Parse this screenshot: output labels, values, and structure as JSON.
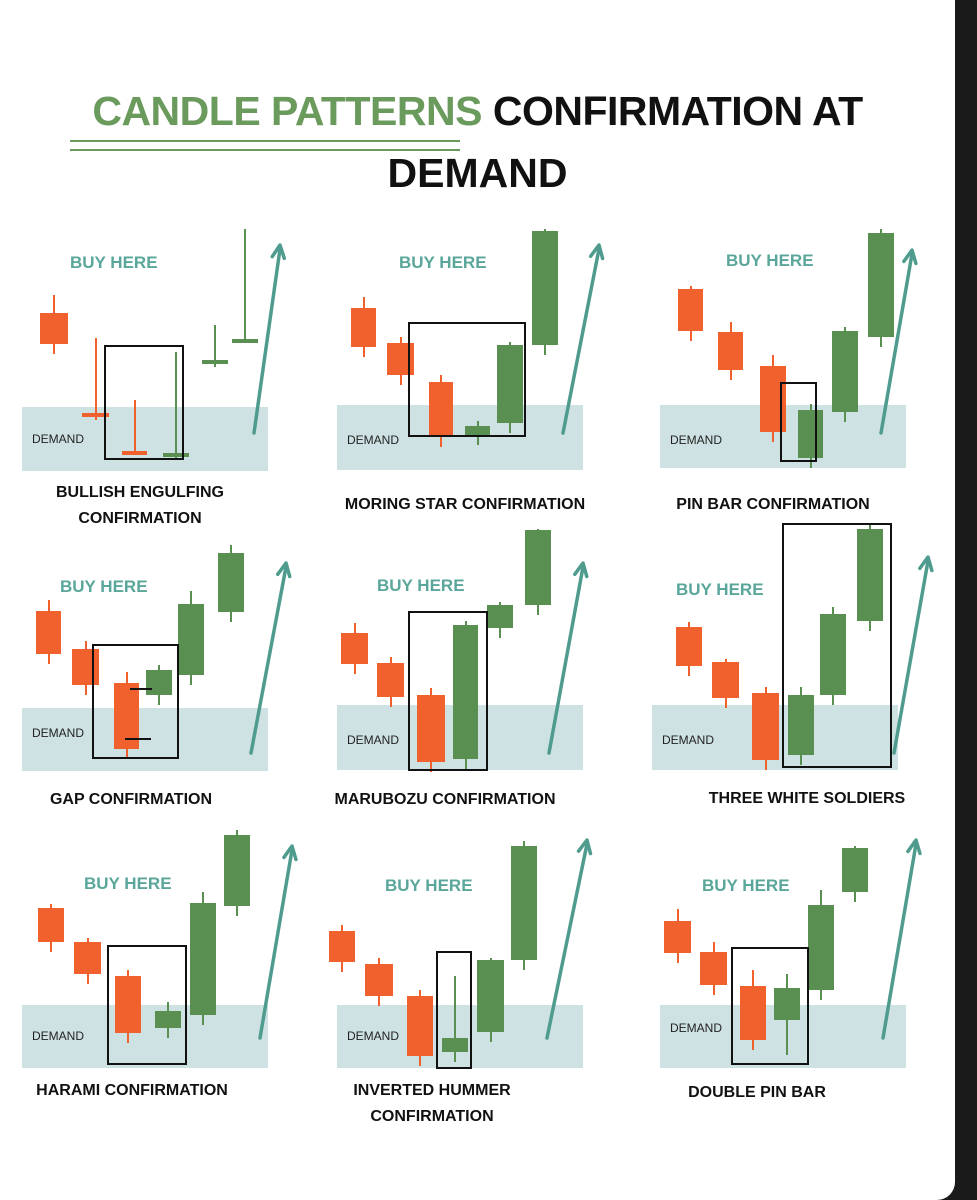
{
  "title": {
    "highlight": "CANDLE PATTERNS",
    "rest": "CONFIRMATION AT",
    "line2": "DEMAND"
  },
  "colors": {
    "bearish": "#f0612e",
    "bullish": "#5a8f52",
    "demand_zone": "#cfe2e3",
    "buy_text": "#5aa69a",
    "arrow": "#4f9c8e",
    "title_green": "#6a9a5c"
  },
  "labels": {
    "buy_here": "BUY HERE",
    "demand": "DEMAND"
  },
  "patterns": [
    {
      "name": "bullish-engulfing",
      "caption_lines": [
        "BULLISH ENGULFING",
        "CONFIRMATION"
      ]
    },
    {
      "name": "morning-star",
      "caption_lines": [
        "MORING STAR CONFIRMATION"
      ]
    },
    {
      "name": "pin-bar",
      "caption_lines": [
        "PIN BAR CONFIRMATION"
      ]
    },
    {
      "name": "gap",
      "caption_lines": [
        "GAP CONFIRMATION"
      ]
    },
    {
      "name": "marubozu",
      "caption_lines": [
        "MARUBOZU CONFIRMATION"
      ]
    },
    {
      "name": "three-white-soldiers",
      "caption_lines": [
        "THREE WHITE SOLDIERS"
      ]
    },
    {
      "name": "harami",
      "caption_lines": [
        "HARAMI CONFIRMATION"
      ]
    },
    {
      "name": "inverted-hammer",
      "caption_lines": [
        "INVERTED HUMMER",
        "CONFIRMATION"
      ]
    },
    {
      "name": "double-pin-bar",
      "caption_lines": [
        "DOUBLE PIN BAR"
      ]
    }
  ]
}
